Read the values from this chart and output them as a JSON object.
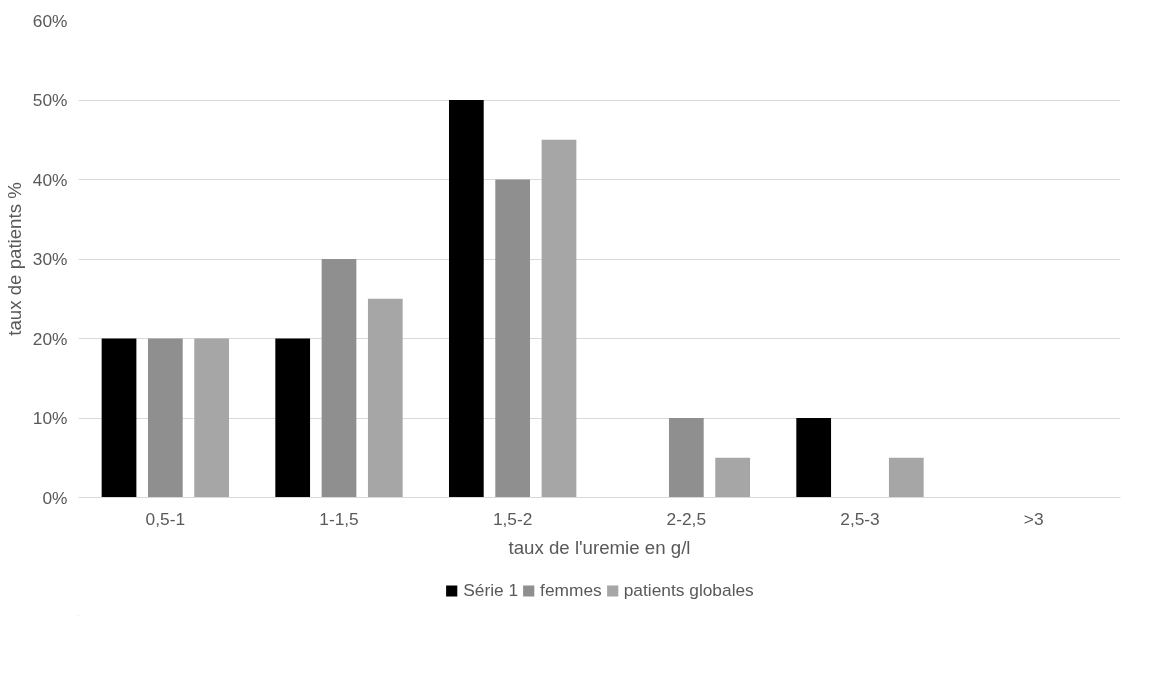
{
  "chart_data": {
    "type": "bar",
    "xlabel": "taux de l'uremie en g/l",
    "ylabel": "taux de patients %",
    "categories": [
      "0,5-1",
      "1-1,5",
      "1,5-2",
      "2-2,5",
      "2,5-3",
      ">3"
    ],
    "series": [
      {
        "name": "Série 1",
        "color": "#000000",
        "values": [
          20,
          20,
          50,
          0,
          10,
          0
        ]
      },
      {
        "name": "femmes",
        "color": "#8f8f8f",
        "values": [
          20,
          30,
          40,
          10,
          0,
          0
        ]
      },
      {
        "name": "patients globales",
        "color": "#a6a6a6",
        "values": [
          20,
          25,
          45,
          5,
          5,
          0
        ]
      }
    ],
    "ylim": [
      0,
      60
    ],
    "yticks": [
      {
        "value": 0,
        "label": "0%"
      },
      {
        "value": 10,
        "label": "10%"
      },
      {
        "value": 20,
        "label": "20%"
      },
      {
        "value": 30,
        "label": "30%"
      },
      {
        "value": 40,
        "label": "40%"
      },
      {
        "value": 50,
        "label": "50%"
      },
      {
        "value": 60,
        "label": "60%"
      }
    ],
    "grid": "y",
    "legend": "bottom"
  }
}
